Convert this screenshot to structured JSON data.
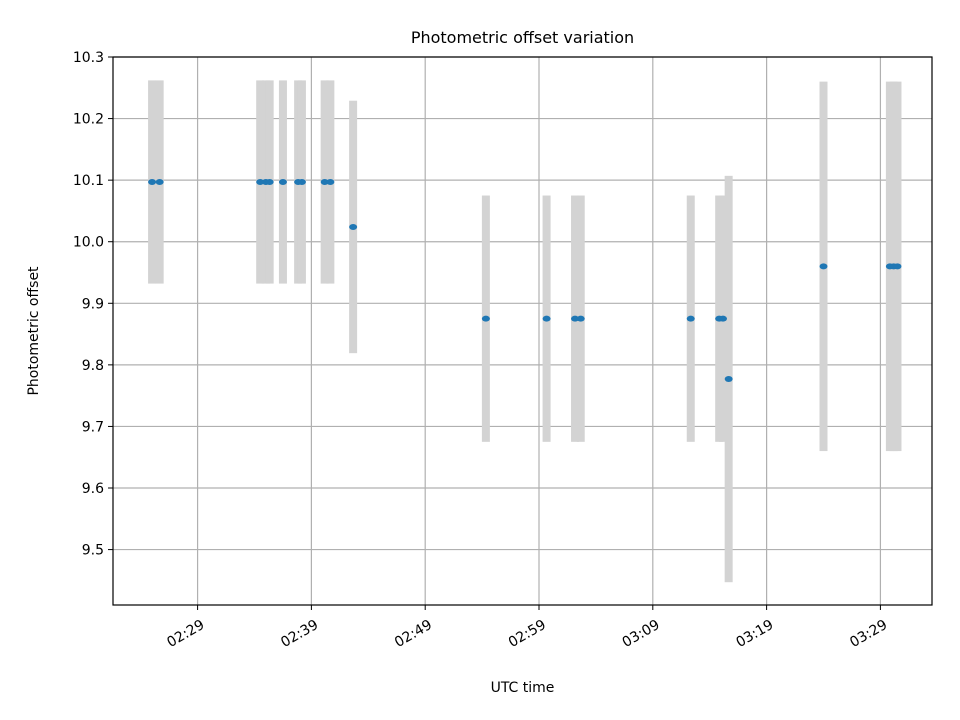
{
  "chart_data": {
    "type": "scatter",
    "title": "Photometric offset variation",
    "xlabel": "UTC time",
    "ylabel": "Photometric offset",
    "xlim": [
      "02:21:34",
      "03:33:32"
    ],
    "ylim": [
      9.41,
      10.3
    ],
    "grid": true,
    "x_ticks": [
      "02:29",
      "02:39",
      "02:49",
      "02:59",
      "03:09",
      "03:19",
      "03:29"
    ],
    "y_ticks": [
      9.5,
      9.6,
      9.7,
      9.8,
      9.9,
      10.0,
      10.1,
      10.2,
      10.3
    ],
    "colors": {
      "points": "#1f77b4",
      "error_bars": "#d3d3d3"
    },
    "points": [
      {
        "x": "02:25:00",
        "y": 10.097,
        "err": 0.165
      },
      {
        "x": "02:25:40",
        "y": 10.097,
        "err": 0.165
      },
      {
        "x": "02:34:30",
        "y": 10.097,
        "err": 0.165
      },
      {
        "x": "02:35:00",
        "y": 10.097,
        "err": 0.165
      },
      {
        "x": "02:35:20",
        "y": 10.097,
        "err": 0.165
      },
      {
        "x": "02:36:30",
        "y": 10.097,
        "err": 0.165
      },
      {
        "x": "02:37:50",
        "y": 10.097,
        "err": 0.165
      },
      {
        "x": "02:38:10",
        "y": 10.097,
        "err": 0.165
      },
      {
        "x": "02:40:10",
        "y": 10.097,
        "err": 0.165
      },
      {
        "x": "02:40:40",
        "y": 10.097,
        "err": 0.165
      },
      {
        "x": "02:42:40",
        "y": 10.024,
        "err": 0.205
      },
      {
        "x": "02:54:20",
        "y": 9.875,
        "err": 0.2
      },
      {
        "x": "02:59:40",
        "y": 9.875,
        "err": 0.2
      },
      {
        "x": "03:02:10",
        "y": 9.875,
        "err": 0.2
      },
      {
        "x": "03:02:40",
        "y": 9.875,
        "err": 0.2
      },
      {
        "x": "03:12:20",
        "y": 9.875,
        "err": 0.2
      },
      {
        "x": "03:14:50",
        "y": 9.875,
        "err": 0.2
      },
      {
        "x": "03:15:10",
        "y": 9.875,
        "err": 0.2
      },
      {
        "x": "03:15:40",
        "y": 9.777,
        "err": 0.33
      },
      {
        "x": "03:24:00",
        "y": 9.96,
        "err": 0.3
      },
      {
        "x": "03:29:50",
        "y": 9.96,
        "err": 0.3
      },
      {
        "x": "03:30:10",
        "y": 9.96,
        "err": 0.3
      },
      {
        "x": "03:30:30",
        "y": 9.96,
        "err": 0.3
      }
    ]
  }
}
